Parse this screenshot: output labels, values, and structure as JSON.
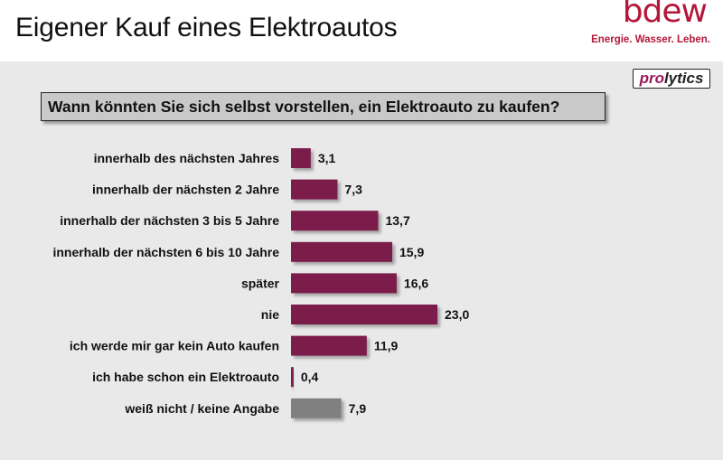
{
  "header": {
    "title": "Eigener Kauf eines Elektroautos",
    "logo_text": "bdew",
    "logo_tagline": "Energie. Wasser. Leben."
  },
  "badge": {
    "pro": "pro",
    "lytics": "lytics"
  },
  "question": "Wann könnten Sie sich selbst vorstellen, ein Elektroauto zu kaufen?",
  "colors": {
    "bar": "#7b1c4b",
    "bar_neutral": "#808080",
    "brand": "#b5173a"
  },
  "chart_data": {
    "type": "bar",
    "orientation": "horizontal",
    "categories": [
      "innerhalb des nächsten Jahres",
      "innerhalb der nächsten 2 Jahre",
      "innerhalb der nächsten 3 bis 5 Jahre",
      "innerhalb der nächsten 6 bis 10 Jahre",
      "später",
      "nie",
      "ich werde mir gar kein Auto kaufen",
      "ich habe schon ein Elektroauto",
      "weiß nicht / keine Angabe"
    ],
    "values": [
      3.1,
      7.3,
      13.7,
      15.9,
      16.6,
      23.0,
      11.9,
      0.4,
      7.9
    ],
    "value_labels": [
      "3,1",
      "7,3",
      "13,7",
      "15,9",
      "16,6",
      "23,0",
      "11,9",
      "0,4",
      "7,9"
    ],
    "bar_colors": [
      "#7b1c4b",
      "#7b1c4b",
      "#7b1c4b",
      "#7b1c4b",
      "#7b1c4b",
      "#7b1c4b",
      "#7b1c4b",
      "#7b1c4b",
      "#808080"
    ],
    "xlim": [
      0,
      23.0
    ],
    "grid": false,
    "legend": "none"
  }
}
